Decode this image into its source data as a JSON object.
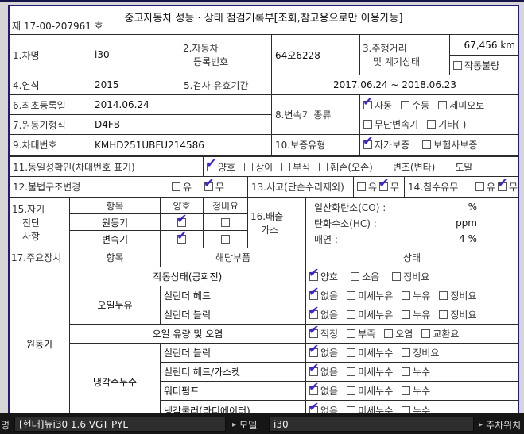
{
  "colors": {
    "check": "#3a28cc",
    "form_border": "#1e1e78",
    "line": "#2b2b2b"
  },
  "form": {
    "title": "중고자동차 성능 · 상태 점검기록부[조회,참고용으로만 이용가능]",
    "doc_no": "제 17-00-207961 호",
    "row1": {
      "f1_label": "1.차명",
      "f1_value": "i30",
      "f2_label_l1": "2.자동차",
      "f2_label_l2": "등록번호",
      "f2_value": "64오6228",
      "f3_label_l1": "3.주행거리",
      "f3_label_l2": "및 계기상태",
      "odometer_value": "67,456 km",
      "odometer_opts": [
        {
          "label": "작동불량",
          "checked": false
        }
      ]
    },
    "row2": {
      "f4_label": "4.연식",
      "f4_value": "2015",
      "f5_label": "5.검사 유효기간",
      "f5_value": "2017.06.24 ~ 2018.06.23"
    },
    "row3": {
      "f6_label": "6.최초등록일",
      "f6_value": "2014.06.24",
      "f7_label": "7.원동기형식",
      "f7_value": "D4FB",
      "f8_label": "8.변속기 종류",
      "f8_opts_line1": [
        {
          "label": "자동",
          "checked": true
        },
        {
          "label": "수동",
          "checked": false
        },
        {
          "label": "세미오토",
          "checked": false
        }
      ],
      "f8_opts_line2": [
        {
          "label": "무단변속기",
          "checked": false
        },
        {
          "label": "기타(    )",
          "checked": false
        }
      ]
    },
    "row4": {
      "f9_label": "9.차대번호",
      "f9_value": "KMHD251UBFU214586",
      "f10_label": "10.보증유형",
      "f10_opts": [
        {
          "label": "자가보증",
          "checked": true
        },
        {
          "label": "보험사보증",
          "checked": false
        }
      ]
    },
    "row5": {
      "f11_label": "11.동일성확인(차대번호 표기)",
      "f11_opts": [
        {
          "label": "양호",
          "checked": true
        },
        {
          "label": "상이",
          "checked": false
        },
        {
          "label": "부식",
          "checked": false
        },
        {
          "label": "훼손(오손)",
          "checked": false
        },
        {
          "label": "변조(변타)",
          "checked": false
        },
        {
          "label": "도말",
          "checked": false
        }
      ]
    },
    "row6": {
      "f12_label": "12.불법구조변경",
      "f12_opts": [
        {
          "label": "유",
          "checked": false
        },
        {
          "label": "무",
          "checked": true
        }
      ],
      "f13_label": "13.사고(단순수리제외)",
      "f13_opts": [
        {
          "label": "유",
          "checked": false
        },
        {
          "label": "무",
          "checked": true
        }
      ],
      "f14_label": "14.침수유무",
      "f14_opts": [
        {
          "label": "유",
          "checked": false
        },
        {
          "label": "무",
          "checked": true
        }
      ]
    },
    "sec15": {
      "label_l1": "15.자기",
      "label_l2": "진단",
      "label_l3": "사항",
      "col_item": "항목",
      "col_good": "양호",
      "col_repair": "정비요",
      "rows": [
        {
          "name": "원동기",
          "good": [
            {
              "label": "",
              "checked": true
            }
          ],
          "repair": [
            {
              "label": "",
              "checked": false
            }
          ]
        },
        {
          "name": "변속기",
          "good": [
            {
              "label": "",
              "checked": true
            }
          ],
          "repair": [
            {
              "label": "",
              "checked": false
            }
          ]
        }
      ]
    },
    "sec16": {
      "label_l1": "16.배출",
      "label_l2": "가스",
      "lines": [
        {
          "label": "일산화탄소(CO) :",
          "value": "%"
        },
        {
          "label": "탄화수소(HC) :",
          "value": "ppm"
        },
        {
          "label": "매연 :",
          "value": "4 %"
        }
      ]
    },
    "sec17": {
      "label": "17.주요장치",
      "col_item": "항목",
      "col_part": "해당부품",
      "col_status": "상태",
      "group_label": "원동기",
      "row_idle": {
        "part": "작동상태(공회전)",
        "opts": [
          {
            "label": "양호",
            "checked": true
          },
          {
            "label": "소음",
            "checked": false
          },
          {
            "label": "정비요",
            "checked": false
          }
        ]
      },
      "oil_leak": {
        "label": "오일누유",
        "rows": [
          {
            "part": "실린더 헤드",
            "opts": [
              {
                "label": "없음",
                "checked": true
              },
              {
                "label": "미세누유",
                "checked": false
              },
              {
                "label": "누유",
                "checked": false
              },
              {
                "label": "정비요",
                "checked": false
              }
            ]
          },
          {
            "part": "실린더 블럭",
            "opts": [
              {
                "label": "없음",
                "checked": true
              },
              {
                "label": "미세누유",
                "checked": false
              },
              {
                "label": "누유",
                "checked": false
              },
              {
                "label": "정비요",
                "checked": false
              }
            ]
          }
        ]
      },
      "row_oil_level": {
        "part": "오일 유량 및 오염",
        "opts": [
          {
            "label": "적정",
            "checked": true
          },
          {
            "label": "부족",
            "checked": false
          },
          {
            "label": "오염",
            "checked": false
          },
          {
            "label": "교환요",
            "checked": false
          }
        ]
      },
      "coolant_leak": {
        "label": "냉각수누수",
        "rows": [
          {
            "part": "실린더 블럭",
            "opts": [
              {
                "label": "없음",
                "checked": true
              },
              {
                "label": "미세누수",
                "checked": false
              },
              {
                "label": "정비요",
                "checked": false
              }
            ]
          },
          {
            "part": "실린더 헤드/가스켓",
            "opts": [
              {
                "label": "없음",
                "checked": true
              },
              {
                "label": "미세누수",
                "checked": false
              },
              {
                "label": "누수",
                "checked": false
              }
            ]
          },
          {
            "part": "워터펌프",
            "opts": [
              {
                "label": "없음",
                "checked": true
              },
              {
                "label": "미세누수",
                "checked": false
              },
              {
                "label": "누수",
                "checked": false
              }
            ]
          },
          {
            "part": "냉각쿨러(라디에이터)",
            "opts": [
              {
                "label": "없음",
                "checked": true
              },
              {
                "label": "미세누수",
                "checked": false
              },
              {
                "label": "누수",
                "checked": false
              }
            ]
          }
        ]
      }
    }
  },
  "statusbar": {
    "left_partial": "명",
    "vehicle_name": "[현대]뉴i30 1.6 VGT PYL",
    "model_label": "모델",
    "model_value": "i30",
    "parking_label": "주차위치",
    "arrow": "▸"
  }
}
